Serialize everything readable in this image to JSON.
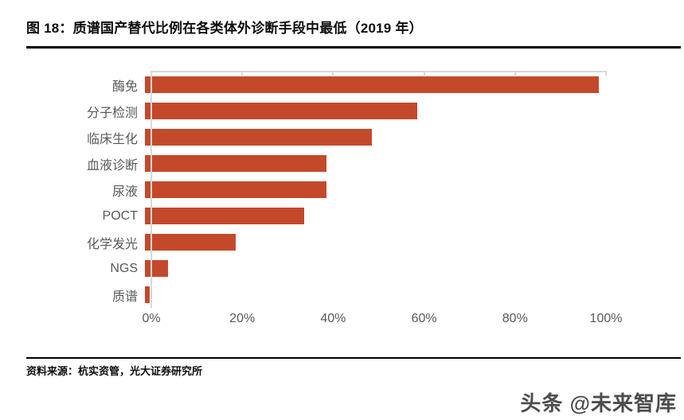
{
  "header": {
    "title": "图 18：质谱国产替代比例在各类体外诊断手段中最低（2019 年）"
  },
  "chart_data": {
    "type": "bar",
    "orientation": "horizontal",
    "title": "质谱国产替代比例在各类体外诊断手段中最低（2019 年）",
    "categories": [
      "酶免",
      "分子检测",
      "临床生化",
      "血液诊断",
      "尿液",
      "POCT",
      "化学发光",
      "NGS",
      "质谱"
    ],
    "values": [
      100,
      60,
      50,
      40,
      40,
      35,
      20,
      5,
      1
    ],
    "unit": "%",
    "xlim": [
      0,
      100
    ],
    "x_tick_values": [
      0,
      20,
      40,
      60,
      80,
      100
    ],
    "x_tick_labels": [
      "0%",
      "20%",
      "40%",
      "60%",
      "80%",
      "100%"
    ],
    "xlabel": "",
    "ylabel": "",
    "grid": false,
    "legend": false,
    "bar_color": "#C4492B",
    "axis_color": "#D9D9D9",
    "tick_label_color": "#595959"
  },
  "footer": {
    "source": "资料来源：杭实资管，光大证券研究所",
    "watermark": "头条 @未来智库"
  }
}
